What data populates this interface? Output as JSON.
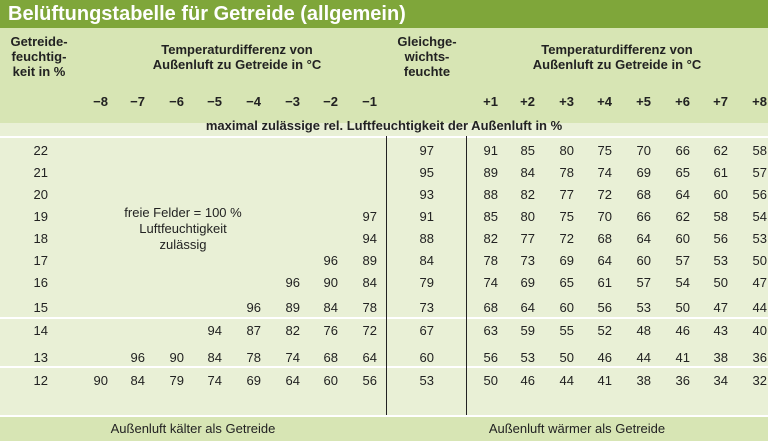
{
  "title": "Belüftungstabelle für Getreide (allgemein)",
  "header": {
    "col1": "Getreide-feuchtig-keit in %",
    "col1_lines": [
      "Getreide-",
      "feuchtig-",
      "keit in %"
    ],
    "left_group": [
      "Temperaturdifferenz von",
      "Außenluft zu Getreide in °C"
    ],
    "eq_lines": [
      "Gleichge-",
      "wichts-",
      "feuchte"
    ],
    "right_group": [
      "Temperaturdifferenz von",
      "Außenluft zu Getreide in °C"
    ],
    "left_diffs": [
      "−8",
      "−7",
      "−6",
      "−5",
      "−4",
      "−3",
      "−2",
      "−1"
    ],
    "right_diffs": [
      "+1",
      "+2",
      "+3",
      "+4",
      "+5",
      "+6",
      "+7",
      "+8"
    ]
  },
  "band_text": "maximal zulässige rel. Luftfeuchtigkeit der Außenluft in %",
  "note_lines": [
    "freie Felder = 100 %",
    "Luftfeuchtigkeit",
    "zulässig"
  ],
  "footer": {
    "left": "Außenluft kälter als Getreide",
    "right": "Außenluft wärmer als Getreide"
  },
  "rows": [
    {
      "moisture": "22",
      "left": [
        "",
        "",
        "",
        "",
        "",
        "",
        "",
        ""
      ],
      "eq": "97",
      "right": [
        "91",
        "85",
        "80",
        "75",
        "70",
        "66",
        "62",
        "58"
      ]
    },
    {
      "moisture": "21",
      "left": [
        "",
        "",
        "",
        "",
        "",
        "",
        "",
        ""
      ],
      "eq": "95",
      "right": [
        "89",
        "84",
        "78",
        "74",
        "69",
        "65",
        "61",
        "57"
      ]
    },
    {
      "moisture": "20",
      "left": [
        "",
        "",
        "",
        "",
        "",
        "",
        "",
        ""
      ],
      "eq": "93",
      "right": [
        "88",
        "82",
        "77",
        "72",
        "68",
        "64",
        "60",
        "56"
      ]
    },
    {
      "moisture": "19",
      "left": [
        "",
        "",
        "",
        "",
        "",
        "",
        "",
        "97"
      ],
      "eq": "91",
      "right": [
        "85",
        "80",
        "75",
        "70",
        "66",
        "62",
        "58",
        "54"
      ]
    },
    {
      "moisture": "18",
      "left": [
        "",
        "",
        "",
        "",
        "",
        "",
        "",
        "94"
      ],
      "eq": "88",
      "right": [
        "82",
        "77",
        "72",
        "68",
        "64",
        "60",
        "56",
        "53"
      ]
    },
    {
      "moisture": "17",
      "left": [
        "",
        "",
        "",
        "",
        "",
        "",
        "96",
        "89"
      ],
      "eq": "84",
      "right": [
        "78",
        "73",
        "69",
        "64",
        "60",
        "57",
        "53",
        "50"
      ]
    },
    {
      "moisture": "16",
      "left": [
        "",
        "",
        "",
        "",
        "",
        "96",
        "90",
        "84"
      ],
      "eq": "79",
      "right": [
        "74",
        "69",
        "65",
        "61",
        "57",
        "54",
        "50",
        "47"
      ]
    },
    {
      "moisture": "15",
      "left": [
        "",
        "",
        "",
        "",
        "96",
        "89",
        "84",
        "78"
      ],
      "eq": "73",
      "right": [
        "68",
        "64",
        "60",
        "56",
        "53",
        "50",
        "47",
        "44"
      ]
    },
    {
      "moisture": "14",
      "left": [
        "",
        "",
        "",
        "94",
        "87",
        "82",
        "76",
        "72"
      ],
      "eq": "67",
      "right": [
        "63",
        "59",
        "55",
        "52",
        "48",
        "46",
        "43",
        "40"
      ]
    },
    {
      "moisture": "13",
      "left": [
        "",
        "96",
        "90",
        "84",
        "78",
        "74",
        "68",
        "64"
      ],
      "eq": "60",
      "right": [
        "56",
        "53",
        "50",
        "46",
        "44",
        "41",
        "38",
        "36"
      ]
    },
    {
      "moisture": "12",
      "left": [
        "90",
        "84",
        "79",
        "74",
        "69",
        "64",
        "60",
        "56"
      ],
      "eq": "53",
      "right": [
        "50",
        "46",
        "44",
        "41",
        "38",
        "36",
        "34",
        "32"
      ]
    }
  ]
}
